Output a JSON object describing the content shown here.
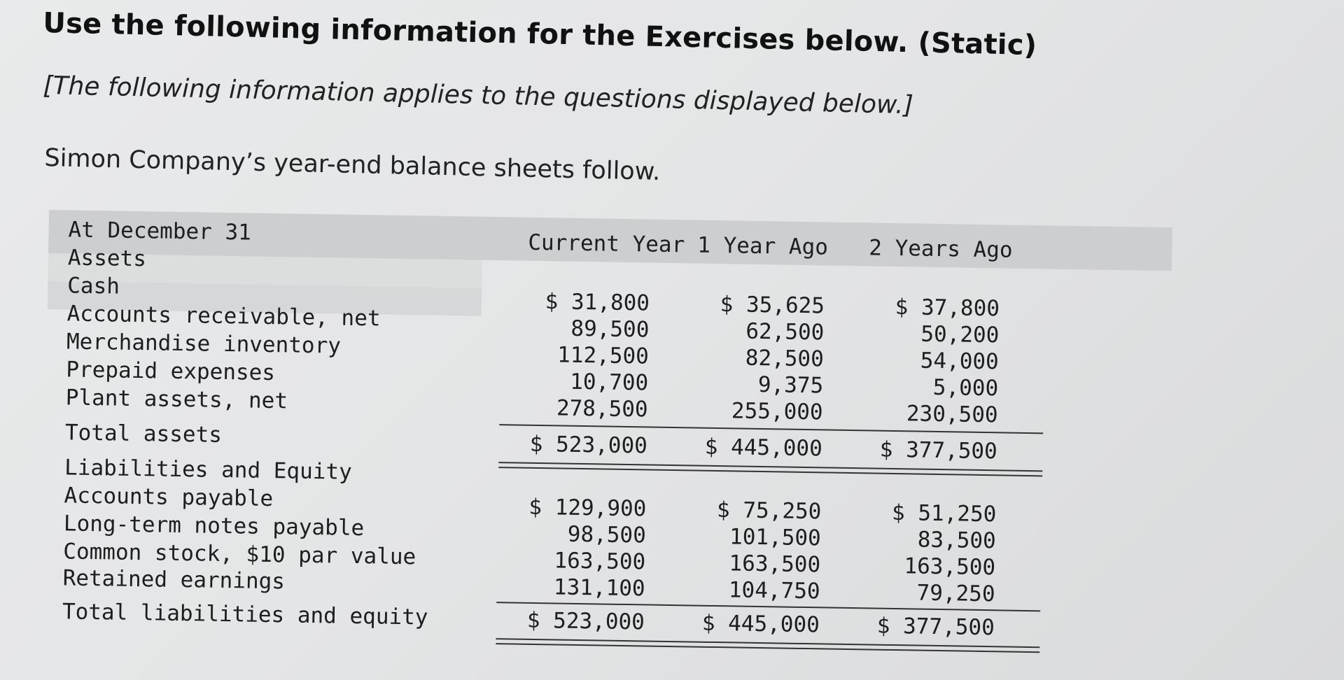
{
  "heading": "Use the following information for the Exercises below. (Static)",
  "note": "[The following information applies to the questions displayed below.]",
  "intro": "Simon Company’s year-end balance sheets follow.",
  "table": {
    "header_label": "At December 31",
    "columns": [
      "Current Year",
      "1 Year Ago",
      "2 Years Ago"
    ],
    "assets_heading": "Assets",
    "assets": [
      {
        "label": "Cash",
        "values": [
          "$ 31,800",
          "$ 35,625",
          "$ 37,800"
        ]
      },
      {
        "label": "Accounts receivable, net",
        "values": [
          "89,500",
          "62,500",
          "50,200"
        ]
      },
      {
        "label": "Merchandise inventory",
        "values": [
          "112,500",
          "82,500",
          "54,000"
        ]
      },
      {
        "label": "Prepaid expenses",
        "values": [
          "10,700",
          "9,375",
          "5,000"
        ]
      },
      {
        "label": "Plant assets, net",
        "values": [
          "278,500",
          "255,000",
          "230,500"
        ]
      }
    ],
    "total_assets": {
      "label": "Total assets",
      "values": [
        "$ 523,000",
        "$ 445,000",
        "$ 377,500"
      ]
    },
    "liabilities_heading": "Liabilities and Equity",
    "liabilities": [
      {
        "label": "Accounts payable",
        "values": [
          "$ 129,900",
          "$ 75,250",
          "$ 51,250"
        ]
      },
      {
        "label": "Long-term notes payable",
        "values": [
          "98,500",
          "101,500",
          "83,500"
        ]
      },
      {
        "label": "Common stock, $10 par value",
        "values": [
          "163,500",
          "163,500",
          "163,500"
        ]
      },
      {
        "label": "Retained earnings",
        "values": [
          "131,100",
          "104,750",
          "79,250"
        ]
      }
    ],
    "total_liabilities": {
      "label": "Total liabilities and equity",
      "values": [
        "$ 523,000",
        "$ 445,000",
        "$ 377,500"
      ]
    }
  }
}
